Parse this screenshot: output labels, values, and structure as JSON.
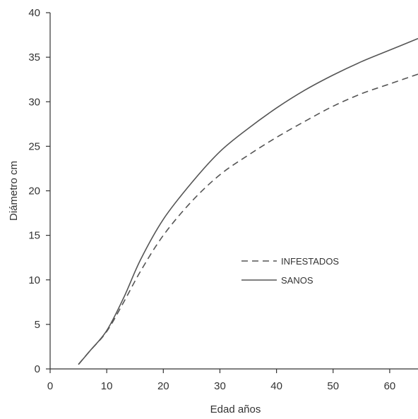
{
  "chart_data": {
    "type": "line",
    "title": "",
    "xlabel": "Edad años",
    "ylabel": "Diámetro cm",
    "xlim": [
      0,
      65
    ],
    "ylim": [
      0,
      40
    ],
    "xticks": [
      0,
      10,
      20,
      30,
      40,
      50,
      60
    ],
    "yticks": [
      0,
      5,
      10,
      15,
      20,
      25,
      30,
      35,
      40
    ],
    "grid": false,
    "legend_position": "center-right",
    "series": [
      {
        "name": "INFESTADOS",
        "style": "dashed",
        "color": "#555555",
        "x": [
          5,
          7,
          10,
          13,
          16,
          20,
          25,
          30,
          35,
          40,
          45,
          50,
          55,
          60,
          65
        ],
        "y": [
          0.5,
          2.0,
          4.2,
          7.5,
          11.0,
          15.0,
          18.8,
          21.8,
          24.0,
          26.0,
          27.8,
          29.5,
          30.9,
          32.0,
          33.1
        ]
      },
      {
        "name": "SANOS",
        "style": "solid",
        "color": "#555555",
        "x": [
          5,
          7,
          10,
          13,
          16,
          20,
          25,
          30,
          35,
          40,
          45,
          50,
          55,
          60,
          65
        ],
        "y": [
          0.5,
          2.0,
          4.3,
          8.0,
          12.3,
          16.8,
          20.9,
          24.4,
          27.0,
          29.3,
          31.3,
          33.0,
          34.5,
          35.8,
          37.1
        ]
      }
    ]
  }
}
